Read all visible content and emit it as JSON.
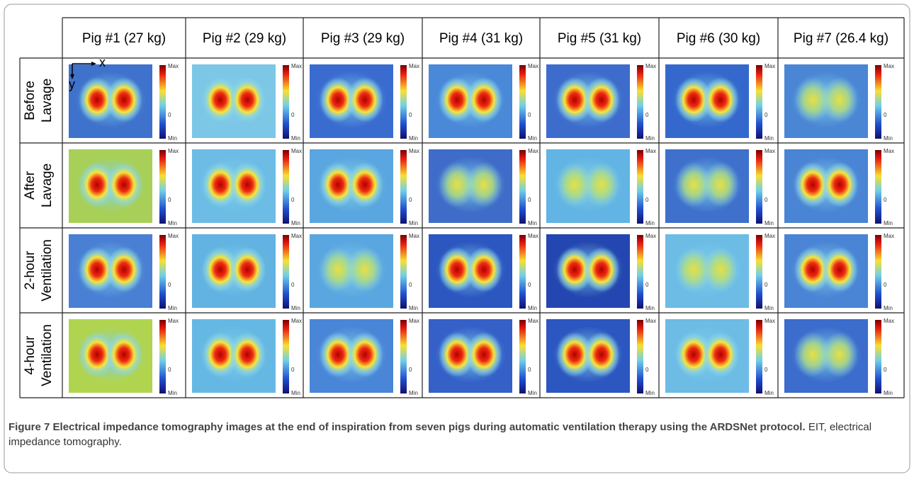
{
  "figure": {
    "columns": [
      "Pig #1 (27 kg)",
      "Pig #2 (29 kg)",
      "Pig #3 (29 kg)",
      "Pig #4 (31 kg)",
      "Pig #5 (31 kg)",
      "Pig #6 (30 kg)",
      "Pig #7 (26.4 kg)"
    ],
    "rows": [
      [
        "Before",
        "Lavage"
      ],
      [
        "After",
        "Lavage"
      ],
      [
        "2-hour",
        "Ventilation"
      ],
      [
        "4-hour",
        "Ventilation"
      ]
    ],
    "axis_labels": {
      "x": "x",
      "y": "y"
    },
    "colorbar_labels": {
      "max": "Max",
      "zero": "0",
      "min": "Min"
    }
  },
  "caption": {
    "label": "Figure 7",
    "title": "Electrical impedance tomography images at the end of inspiration from seven pigs during automatic ventilation therapy using the ARDSNet protocol.",
    "text": "EIT, electrical impedance tomography."
  }
}
